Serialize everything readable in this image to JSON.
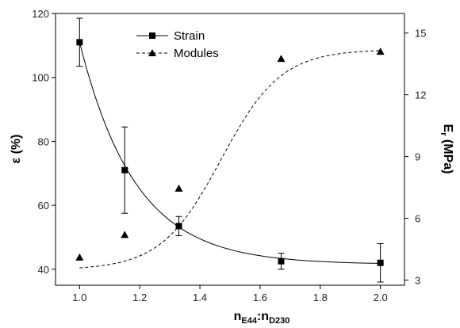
{
  "chart_data": {
    "type": "scatter",
    "x_ticks": [
      "1.0",
      "1.2",
      "1.4",
      "1.6",
      "1.8",
      "2.0"
    ],
    "xlim": [
      0.92,
      2.08
    ],
    "y_left": {
      "label": "ε (%)",
      "lim": [
        35,
        120
      ],
      "ticks": [
        "40",
        "60",
        "80",
        "100",
        "120"
      ]
    },
    "y_right": {
      "label_main": "E",
      "label_sub": "r",
      "label_unit": " (MPa)",
      "lim": [
        2.75,
        15.95
      ],
      "ticks": [
        "3",
        "6",
        "9",
        "12",
        "15"
      ]
    },
    "xlabel": {
      "n1": "n",
      "s1": "E44",
      "colon": ":",
      "n2": "n",
      "s2": "D230"
    },
    "series": [
      {
        "name": "Strain",
        "axis": "left",
        "marker": "square",
        "line": "solid",
        "x": [
          1.0,
          1.15,
          1.33,
          1.67,
          2.0
        ],
        "y": [
          111,
          71,
          53.5,
          42.5,
          42
        ],
        "err": [
          7.5,
          13.5,
          3,
          2.5,
          6
        ],
        "fit": {
          "type": "exp",
          "params": [
            41.5,
            69.5,
            5.4
          ]
        }
      },
      {
        "name": "Modules",
        "axis": "right",
        "marker": "triangle",
        "line": "dashed",
        "x": [
          1.0,
          1.15,
          1.33,
          1.67,
          2.0
        ],
        "y": [
          4.1,
          5.2,
          7.45,
          13.75,
          14.1
        ],
        "fit": {
          "type": "logistic",
          "params": [
            3.5,
            10.7,
            1.47,
            0.1
          ]
        }
      }
    ],
    "legend": "top-left",
    "grid": false
  }
}
